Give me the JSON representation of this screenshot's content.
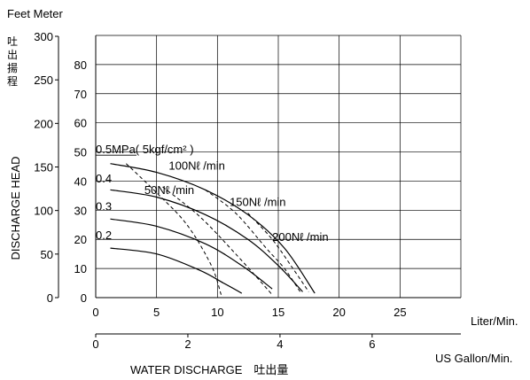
{
  "chart_data": {
    "type": "line",
    "title": "",
    "header_units": "Feet Meter",
    "ylabel": "DISCHARGE HEAD",
    "ylabel_jp": [
      "吐",
      "出",
      "揚",
      "程"
    ],
    "xlabel": "WATER DISCHARGE　吐出量",
    "x_unit_primary": "Liter/Min.",
    "x_unit_secondary": "US Gallon/Min.",
    "xlim": [
      0,
      30
    ],
    "ylim_meter": [
      0,
      90
    ],
    "ylim_feet": [
      0,
      300
    ],
    "grid": true,
    "x_ticks": [
      "0",
      "5",
      "10",
      "15",
      "20",
      "25"
    ],
    "y_meter_ticks": [
      "0",
      "10",
      "20",
      "30",
      "40",
      "50",
      "60",
      "70",
      "80"
    ],
    "y_feet_ticks": [
      "0",
      "50",
      "100",
      "150",
      "200",
      "250",
      "300"
    ],
    "gallon_ticks": [
      "0",
      "2",
      "4",
      "6"
    ],
    "pressure_curves": [
      {
        "name": "0.5MPa( 5kgf/cm² )",
        "points": [
          [
            1.2,
            46
          ],
          [
            5,
            43
          ],
          [
            9,
            37
          ],
          [
            12.5,
            28.5
          ],
          [
            15.5,
            17
          ],
          [
            18,
            1.5
          ]
        ]
      },
      {
        "name": "0.4",
        "points": [
          [
            1.2,
            37
          ],
          [
            5,
            34.5
          ],
          [
            9,
            28.5
          ],
          [
            12.5,
            20
          ],
          [
            15,
            11
          ],
          [
            17,
            2
          ]
        ]
      },
      {
        "name": "0.3",
        "points": [
          [
            1.2,
            27
          ],
          [
            5,
            24.5
          ],
          [
            9,
            18.5
          ],
          [
            12,
            11
          ],
          [
            14.5,
            3
          ]
        ]
      },
      {
        "name": "0.2",
        "points": [
          [
            1.2,
            17
          ],
          [
            5,
            15
          ],
          [
            8.5,
            9.5
          ],
          [
            10.5,
            5
          ],
          [
            12,
            1.5
          ]
        ]
      }
    ],
    "air_curves": [
      {
        "name": "100Nℓ /min",
        "points": [
          [
            2.5,
            46
          ],
          [
            5,
            36
          ],
          [
            7.5,
            25
          ],
          [
            9.5,
            11
          ],
          [
            10.3,
            1
          ]
        ]
      },
      {
        "name": "50Nℓ /min",
        "points": [
          [
            5.5,
            38
          ],
          [
            8.5,
            28
          ],
          [
            11.5,
            15
          ],
          [
            14.5,
            1
          ]
        ]
      },
      {
        "name": "150Nℓ /min",
        "points": [
          [
            9,
            37
          ],
          [
            11.5,
            29
          ],
          [
            14,
            17
          ],
          [
            15.5,
            10
          ],
          [
            16.8,
            2
          ]
        ]
      },
      {
        "name": "200Nℓ /min",
        "points": [
          [
            12.5,
            29
          ],
          [
            14.5,
            20
          ],
          [
            16.2,
            10
          ],
          [
            17.5,
            2
          ]
        ]
      }
    ],
    "label_anchors": {
      "0.5MPa( 5kgf/cm² )": [
        0,
        49.5
      ],
      "0.4": [
        0,
        39.5
      ],
      "0.3": [
        0,
        30
      ],
      "0.2": [
        0,
        20
      ],
      "100Nℓ /min": [
        6,
        44
      ],
      "50Nℓ /min": [
        4,
        35.5
      ],
      "150Nℓ /min": [
        11,
        31.5
      ],
      "200Nℓ /min": [
        14.5,
        19.5
      ]
    }
  }
}
